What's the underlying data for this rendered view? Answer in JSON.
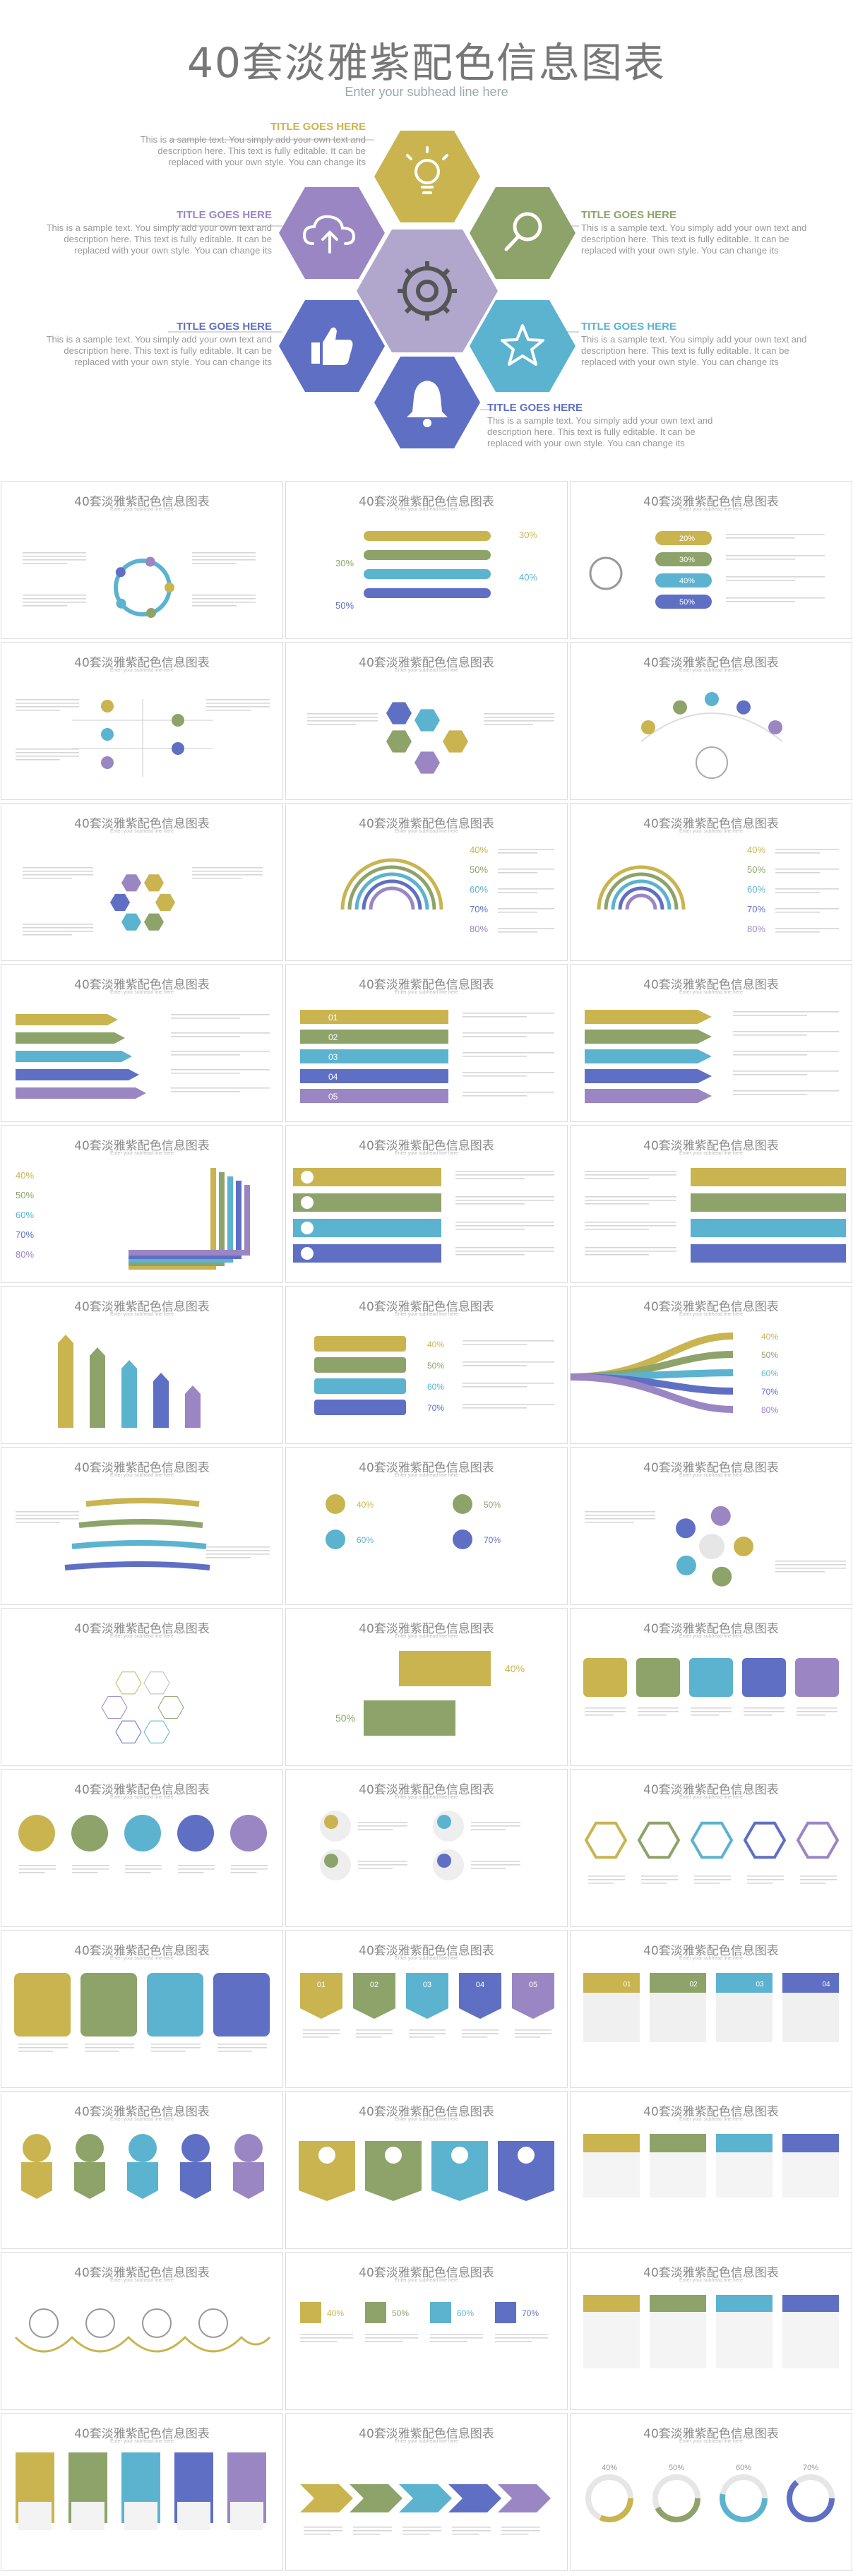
{
  "hero": {
    "title": "40套淡雅紫配色信息图表",
    "subtitle": "Enter your subhead line here",
    "callouts": [
      {
        "title": "TITLE GOES HERE",
        "color": "#c9b450",
        "text": "This is a sample text. You simply add your own text and description here. This text is fully editable. It can be replaced with your own style. You can change its"
      },
      {
        "title": "TITLE GOES HERE",
        "color": "#9b86c4",
        "text": "This is a sample text. You simply add your own text and description here. This text is fully editable. It can be replaced with your own style. You can change its"
      },
      {
        "title": "TITLE GOES HERE",
        "color": "#8da36a",
        "text": "This is a sample text. You simply add your own text and description here. This text is fully editable. It can be replaced with your own style. You can change its"
      },
      {
        "title": "TITLE GOES HERE",
        "color": "#5f6fc4",
        "text": "This is a sample text. You simply add your own text and description here. This text is fully editable. It can be replaced with your own style. You can change its"
      },
      {
        "title": "TITLE GOES HERE",
        "color": "#5bb3cf",
        "text": "This is a sample text. You simply add your own text and description here. This text is fully editable. It can be replaced with your own style. You can change its"
      },
      {
        "title": "TITLE GOES HERE",
        "color": "#5f6fc4",
        "text": "This is a sample text. You simply add your own text and description here. This text is fully editable. It can be replaced with your own style. You can change its"
      }
    ],
    "hex_icons": [
      "lightbulb-icon",
      "cloud-upload-icon",
      "magnifier-icon",
      "gear-icon",
      "thumbs-up-icon",
      "star-icon",
      "bell-icon"
    ]
  },
  "colors": {
    "olive": "#c9b450",
    "green": "#8da36a",
    "teal": "#5bb3cf",
    "blue": "#5f6fc4",
    "purple": "#9b86c4",
    "gray": "#bbbbbb"
  },
  "thumb_title": "40套淡雅紫配色信息图表",
  "thumb_sub": "Enter your subhead line here",
  "percent_labels": [
    "20%",
    "30%",
    "40%",
    "50%",
    "60%",
    "70%",
    "80%",
    "90%"
  ],
  "numbers": [
    "01",
    "02",
    "03",
    "04",
    "05"
  ],
  "small_title": "TITLE GOES HERE"
}
